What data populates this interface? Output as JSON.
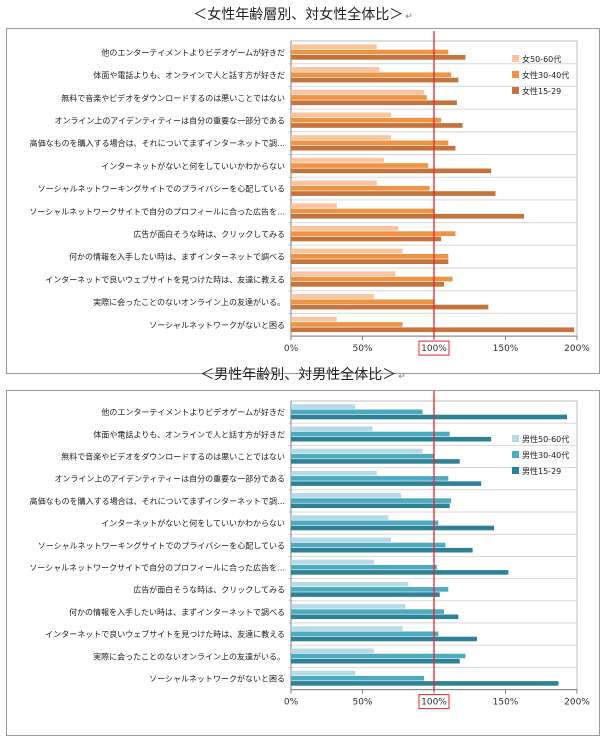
{
  "chart_data": [
    {
      "type": "bar",
      "orientation": "horizontal",
      "title": "＜女性年齢層別、対女性全体比＞",
      "title_mark": "↵",
      "categories": [
        "他のエンターテイメントよりビデオゲームが好きだ",
        "体面や電話よりも、オンラインで人と話す方が好きだ",
        "無料で音楽やビデオをダウンロードするのは悪いことではない",
        "オンライン上のアイデンティティーは自分の重要な一部分である",
        "高価なものを購入する場合は、それについてまずインターネットで調…",
        "インターネットがないと何をしていいかわからない",
        "ソーシャルネットワーキングサイトでのプライバシーを心配している",
        "ソーシャルネットワークサイトで自分のプロフィールに合った広告を…",
        "広告が面白そうな時は、クリックしてみる",
        "何かの情報を入手したい時は、まずインターネットで調べる",
        "インターネットで良いウェブサイトを見つけた時は、友達に教える",
        "実際に会ったことのないオンライン上の友達がいる。",
        "ソーシャルネットワークがないと困る"
      ],
      "series": [
        {
          "name": "女50-60代",
          "color": "#f9c49e",
          "values": [
            60,
            62,
            93,
            70,
            70,
            65,
            60,
            32,
            75,
            78,
            73,
            58,
            32
          ]
        },
        {
          "name": "女性30-40代",
          "color": "#ee9545",
          "values": [
            110,
            112,
            95,
            105,
            110,
            96,
            97,
            100,
            115,
            110,
            113,
            100,
            78
          ]
        },
        {
          "name": "女性15-29",
          "color": "#c5743e",
          "values": [
            122,
            117,
            116,
            120,
            115,
            140,
            143,
            163,
            105,
            110,
            107,
            138,
            198
          ]
        }
      ],
      "xlim": [
        0,
        200
      ],
      "xticks": [
        "0%",
        "50%",
        "100%",
        "150%",
        "200%"
      ],
      "reference_line": 100,
      "legend": "right"
    },
    {
      "type": "bar",
      "orientation": "horizontal",
      "title": "＜男性年齢別、対男性全体比＞",
      "title_mark": "↵",
      "categories": [
        "他のエンターテイメントよりビデオゲームが好きだ",
        "体面や電話よりも、オンラインで人と話す方が好きだ",
        "無料で音楽やビデオをダウンロードするのは悪いことではない",
        "オンライン上のアイデンティティーは自分の重要な一部分である",
        "高価なものを購入する場合は、それについてまずインターネットで調…",
        "インターネットがないと何をしていいかわからない",
        "ソーシャルネットワーキングサイトでのプライバシーを心配している",
        "ソーシャルネットワークサイトで自分のプロフィールに合った広告を…",
        "広告が面白そうな時は、クリックしてみる",
        "何かの情報を入手したい時は、まずインターネットで調べる",
        "インターネットで良いウェブサイトを見つけた時は、友達に教える",
        "実際に会ったことのないオンライン上の友達がいる。",
        "ソーシャルネットワークがないと困る"
      ],
      "series": [
        {
          "name": "男性50-60代",
          "color": "#b5dbe6",
          "values": [
            45,
            57,
            92,
            60,
            77,
            68,
            70,
            58,
            82,
            80,
            78,
            58,
            45
          ]
        },
        {
          "name": "男性30-40代",
          "color": "#4eaabf",
          "values": [
            92,
            111,
            100,
            110,
            112,
            103,
            108,
            102,
            110,
            107,
            103,
            122,
            93
          ]
        },
        {
          "name": "男性15-29",
          "color": "#2d8297",
          "values": [
            193,
            140,
            118,
            133,
            111,
            142,
            127,
            152,
            104,
            117,
            130,
            118,
            187
          ]
        }
      ],
      "xlim": [
        0,
        200
      ],
      "xticks": [
        "0%",
        "50%",
        "100%",
        "150%",
        "200%"
      ],
      "reference_line": 100,
      "legend": "right"
    }
  ]
}
